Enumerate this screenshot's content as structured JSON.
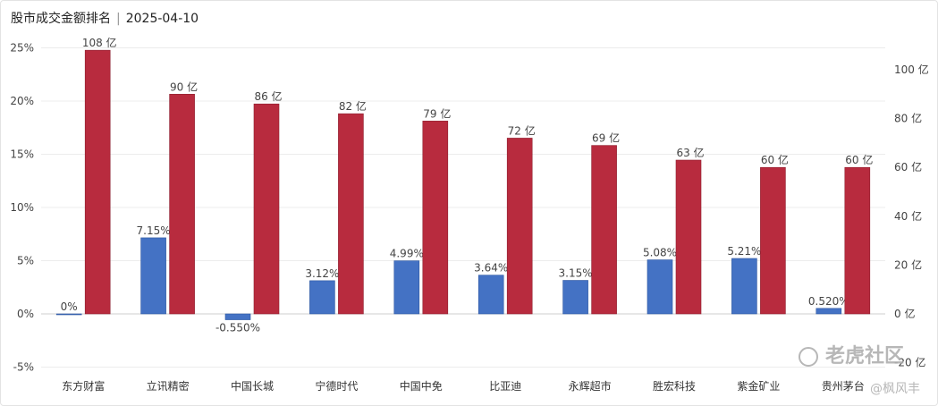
{
  "chart_data": {
    "type": "bar",
    "title": "股市成交金额排名",
    "date": "2025-04-10",
    "categories": [
      "东方财富",
      "立讯精密",
      "中国长城",
      "宁德时代",
      "中国中免",
      "比亚迪",
      "永辉超市",
      "胜宏科技",
      "紫金矿业",
      "贵州茅台"
    ],
    "series": [
      {
        "axis": "left",
        "color": "#4472c4",
        "values": [
          0,
          7.15,
          -0.55,
          3.12,
          4.99,
          3.64,
          3.15,
          5.08,
          5.21,
          0.52
        ],
        "labels": [
          "0%",
          "7.15%",
          "-0.550%",
          "3.12%",
          "4.99%",
          "3.64%",
          "3.15%",
          "5.08%",
          "5.21%",
          "0.520%"
        ]
      },
      {
        "axis": "right",
        "color": "#b82b3e",
        "values": [
          108,
          90,
          86,
          82,
          79,
          72,
          69,
          63,
          60,
          60
        ],
        "labels": [
          "108 亿",
          "90 亿",
          "86 亿",
          "82 亿",
          "79 亿",
          "72 亿",
          "69 亿",
          "63 亿",
          "60 亿",
          "60 亿"
        ]
      }
    ],
    "left_axis": {
      "min": -5,
      "max": 25,
      "ticks": [
        -5,
        0,
        5,
        10,
        15,
        20,
        25
      ],
      "tick_labels": [
        "-5%",
        "0%",
        "5%",
        "10%",
        "15%",
        "20%",
        "25%"
      ]
    },
    "right_axis": {
      "ticks": [
        -20,
        0,
        20,
        40,
        60,
        80,
        100
      ],
      "tick_labels": [
        "-20 亿",
        "0 亿",
        "20 亿",
        "40 亿",
        "60 亿",
        "80 亿",
        "100 亿"
      ]
    },
    "grid": true,
    "legend": "none"
  },
  "watermark": {
    "brand": "老虎社区",
    "author": "@枫风丰"
  }
}
